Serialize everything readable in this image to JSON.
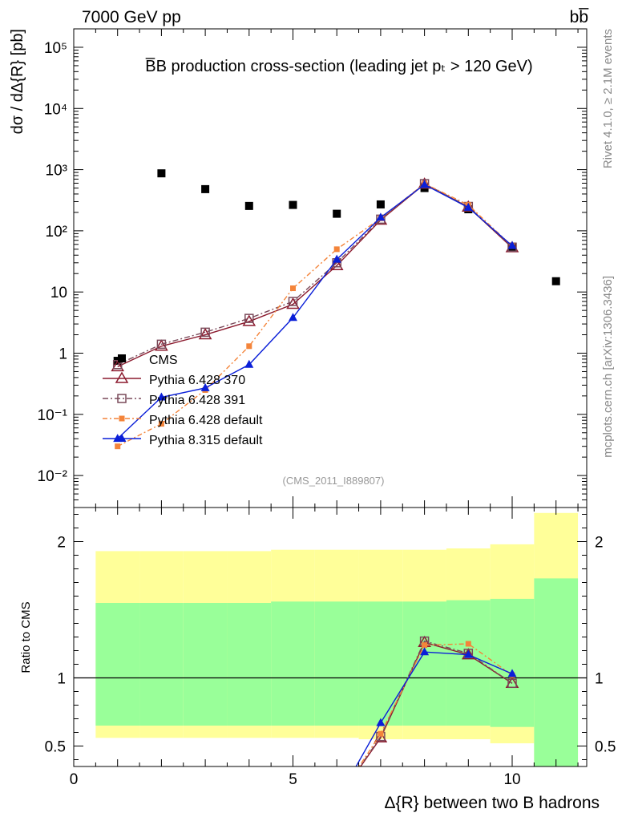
{
  "header": {
    "left": "7000 GeV pp",
    "right": "bb̅"
  },
  "side_labels": {
    "top": "Rivet 4.1.0, ≥ 2.1M events",
    "bottom": "mcplots.cern.ch [arXiv:1306.3436]"
  },
  "chart_data": [
    {
      "type": "scatter",
      "title": "B̅B production cross-section (leading jet pₜ > 120 GeV)",
      "ylabel": "dσ / dΔ{R} [pb]",
      "xlabel": "",
      "yscale": "log",
      "xlim": [
        0,
        11.7
      ],
      "ylim": [
        0.003,
        200000
      ],
      "analysis_tag": "(CMS_2011_I889807)",
      "yticks": [
        {
          "v": 0.01,
          "label": "10⁻²"
        },
        {
          "v": 0.1,
          "label": "10⁻¹"
        },
        {
          "v": 1,
          "label": "1"
        },
        {
          "v": 10,
          "label": "10"
        },
        {
          "v": 100,
          "label": "10²"
        },
        {
          "v": 1000,
          "label": "10³"
        },
        {
          "v": 10000,
          "label": "10⁴"
        },
        {
          "v": 100000,
          "label": "10⁵"
        }
      ],
      "series": [
        {
          "name": "CMS",
          "color": "#000000",
          "marker": "square",
          "x": [
            1,
            2,
            3,
            4,
            5,
            6,
            7,
            8,
            9,
            10,
            11
          ],
          "y": [
            0.75,
            870,
            480,
            255,
            265,
            190,
            270,
            500,
            225,
            55,
            15
          ]
        },
        {
          "name": "Pythia 6.428 370",
          "color": "#8b1a2e",
          "marker": "triangle-open",
          "dash": "",
          "x": [
            1,
            2,
            3,
            4,
            5,
            6,
            7,
            8,
            9,
            10
          ],
          "y": [
            0.6,
            1.3,
            2.0,
            3.3,
            6.3,
            27,
            150,
            580,
            245,
            53
          ]
        },
        {
          "name": "Pythia 6.428 391",
          "color": "#7a4a5a",
          "marker": "square-open",
          "dash": "7,3,2,3",
          "x": [
            1,
            2,
            3,
            4,
            5,
            6,
            7,
            8,
            9,
            10
          ],
          "y": [
            0.65,
            1.4,
            2.2,
            3.7,
            7.0,
            30,
            155,
            590,
            250,
            54
          ]
        },
        {
          "name": "Pythia 6.428 default",
          "color": "#f4843a",
          "marker": "square-filled-small",
          "dash": "6,3,2,3",
          "x": [
            1,
            2,
            3,
            4,
            5,
            6,
            7,
            8,
            9,
            10
          ],
          "y": [
            0.03,
            0.07,
            0.25,
            1.3,
            11.5,
            50,
            160,
            590,
            265,
            56
          ]
        },
        {
          "name": "Pythia 8.315 default",
          "color": "#0a1fd8",
          "marker": "triangle-filled",
          "dash": "",
          "x": [
            1,
            2,
            3,
            4,
            5,
            6,
            7,
            8,
            9,
            10
          ],
          "y": [
            0.04,
            0.19,
            0.27,
            0.65,
            3.8,
            34,
            165,
            570,
            240,
            57
          ]
        }
      ],
      "legend": [
        "CMS",
        "Pythia 6.428 370",
        "Pythia 6.428 391",
        "Pythia 6.428 default",
        "Pythia 8.315 default"
      ]
    },
    {
      "type": "line",
      "ylabel": "Ratio to CMS",
      "xlabel": "Δ{R} between two B hadrons",
      "xlim": [
        0,
        11.7
      ],
      "ylim": [
        0.35,
        2.25
      ],
      "xticks": [
        {
          "v": 0,
          "label": "0"
        },
        {
          "v": 5,
          "label": "5"
        },
        {
          "v": 10,
          "label": "10"
        }
      ],
      "yticks": [
        {
          "v": 0.5,
          "label": "0.5"
        },
        {
          "v": 1,
          "label": "1"
        },
        {
          "v": 2,
          "label": "2"
        }
      ],
      "bands": [
        {
          "x0": 0.5,
          "x1": 1.5,
          "yellow": [
            0.56,
            1.93
          ],
          "green": [
            0.65,
            1.55
          ]
        },
        {
          "x0": 1.5,
          "x1": 2.5,
          "yellow": [
            0.56,
            1.93
          ],
          "green": [
            0.65,
            1.55
          ]
        },
        {
          "x0": 2.5,
          "x1": 3.5,
          "yellow": [
            0.56,
            1.93
          ],
          "green": [
            0.65,
            1.55
          ]
        },
        {
          "x0": 3.5,
          "x1": 4.5,
          "yellow": [
            0.56,
            1.93
          ],
          "green": [
            0.65,
            1.55
          ]
        },
        {
          "x0": 4.5,
          "x1": 5.5,
          "yellow": [
            0.56,
            1.94
          ],
          "green": [
            0.65,
            1.56
          ]
        },
        {
          "x0": 5.5,
          "x1": 6.5,
          "yellow": [
            0.56,
            1.94
          ],
          "green": [
            0.65,
            1.56
          ]
        },
        {
          "x0": 6.5,
          "x1": 7.5,
          "yellow": [
            0.55,
            1.94
          ],
          "green": [
            0.65,
            1.56
          ]
        },
        {
          "x0": 7.5,
          "x1": 8.5,
          "yellow": [
            0.55,
            1.94
          ],
          "green": [
            0.65,
            1.56
          ]
        },
        {
          "x0": 8.5,
          "x1": 9.5,
          "yellow": [
            0.55,
            1.95
          ],
          "green": [
            0.65,
            1.57
          ]
        },
        {
          "x0": 9.5,
          "x1": 10.5,
          "yellow": [
            0.52,
            1.98
          ],
          "green": [
            0.64,
            1.58
          ]
        },
        {
          "x0": 10.5,
          "x1": 11.5,
          "yellow": [
            0.0,
            2.21
          ],
          "green": [
            0.0,
            1.73
          ]
        }
      ],
      "series": [
        {
          "name": "Pythia 6.428 370",
          "color": "#8b1a2e",
          "marker": "triangle-open",
          "dash": "",
          "x": [
            6,
            7,
            8,
            9,
            10
          ],
          "y": [
            0.1,
            0.56,
            1.26,
            1.17,
            0.96
          ]
        },
        {
          "name": "Pythia 6.428 391",
          "color": "#7a4a5a",
          "marker": "square-open",
          "dash": "7,3,2,3",
          "x": [
            6,
            7,
            8,
            9,
            10
          ],
          "y": [
            0.1,
            0.57,
            1.27,
            1.18,
            0.96
          ]
        },
        {
          "name": "Pythia 6.428 default",
          "color": "#f4843a",
          "marker": "square-filled-small",
          "dash": "6,3,2,3",
          "x": [
            6,
            7,
            8,
            9,
            10
          ],
          "y": [
            0.1,
            0.59,
            1.24,
            1.25,
            1.02
          ]
        },
        {
          "name": "Pythia 8.315 default",
          "color": "#0a1fd8",
          "marker": "triangle-filled",
          "dash": "",
          "x": [
            6,
            7,
            8,
            9,
            10
          ],
          "y": [
            0.1,
            0.67,
            1.19,
            1.17,
            1.03
          ]
        }
      ]
    }
  ]
}
